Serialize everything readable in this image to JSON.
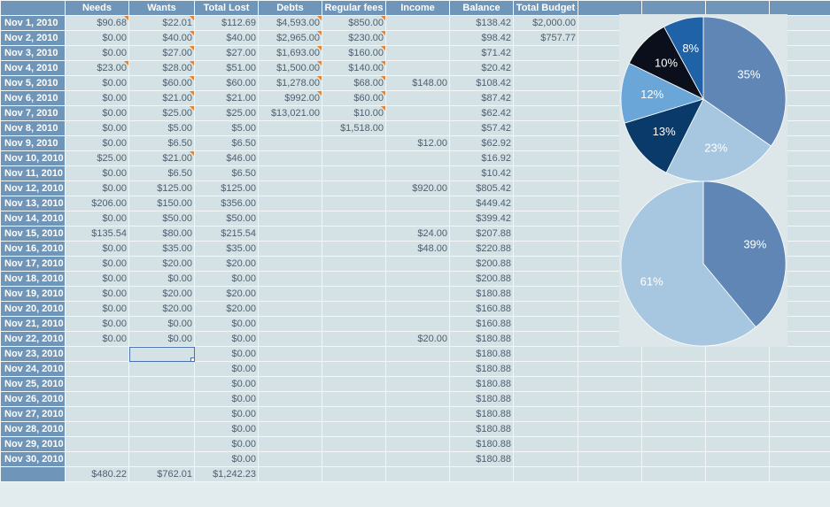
{
  "columns": [
    "",
    "Needs",
    "Wants",
    "Total Lost",
    "Debts",
    "Regular fees",
    "Income",
    "Balance",
    "Total Budget",
    "",
    "",
    "",
    ""
  ],
  "rows": [
    {
      "date": "Nov 1, 2010",
      "needs": "$90.68",
      "wants": "$22.01",
      "total": "$112.69",
      "debts": "$4,593.00",
      "fees": "$850.00",
      "income": "",
      "balance": "$138.42",
      "budget": "$2,000.00",
      "notes": [
        1,
        2,
        4,
        5
      ]
    },
    {
      "date": "Nov 2, 2010",
      "needs": "$0.00",
      "wants": "$40.00",
      "total": "$40.00",
      "debts": "$2,965.00",
      "fees": "$230.00",
      "income": "",
      "balance": "$98.42",
      "budget": "$757.77",
      "notes": [
        2,
        4,
        5
      ]
    },
    {
      "date": "Nov 3, 2010",
      "needs": "$0.00",
      "wants": "$27.00",
      "total": "$27.00",
      "debts": "$1,693.00",
      "fees": "$160.00",
      "income": "",
      "balance": "$71.42",
      "budget": "",
      "notes": [
        2,
        4,
        5
      ]
    },
    {
      "date": "Nov 4, 2010",
      "needs": "$23.00",
      "wants": "$28.00",
      "total": "$51.00",
      "debts": "$1,500.00",
      "fees": "$140.00",
      "income": "",
      "balance": "$20.42",
      "budget": "",
      "notes": [
        1,
        2,
        4,
        5
      ]
    },
    {
      "date": "Nov 5, 2010",
      "needs": "$0.00",
      "wants": "$60.00",
      "total": "$60.00",
      "debts": "$1,278.00",
      "fees": "$68.00",
      "income": "$148.00",
      "balance": "$108.42",
      "budget": "",
      "notes": [
        2,
        4,
        5
      ]
    },
    {
      "date": "Nov 6, 2010",
      "needs": "$0.00",
      "wants": "$21.00",
      "total": "$21.00",
      "debts": "$992.00",
      "fees": "$60.00",
      "income": "",
      "balance": "$87.42",
      "budget": "",
      "notes": [
        2,
        4,
        5
      ]
    },
    {
      "date": "Nov 7, 2010",
      "needs": "$0.00",
      "wants": "$25.00",
      "total": "$25.00",
      "debts": "$13,021.00",
      "fees": "$10.00",
      "income": "",
      "balance": "$62.42",
      "budget": "",
      "notes": [
        2,
        5
      ]
    },
    {
      "date": "Nov 8, 2010",
      "needs": "$0.00",
      "wants": "$5.00",
      "total": "$5.00",
      "debts": "",
      "fees": "$1,518.00",
      "income": "",
      "balance": "$57.42",
      "budget": "",
      "notes": []
    },
    {
      "date": "Nov 9, 2010",
      "needs": "$0.00",
      "wants": "$6.50",
      "total": "$6.50",
      "debts": "",
      "fees": "",
      "income": "$12.00",
      "balance": "$62.92",
      "budget": "",
      "notes": []
    },
    {
      "date": "Nov 10, 2010",
      "needs": "$25.00",
      "wants": "$21.00",
      "total": "$46.00",
      "debts": "",
      "fees": "",
      "income": "",
      "balance": "$16.92",
      "budget": "",
      "notes": [
        2
      ]
    },
    {
      "date": "Nov 11, 2010",
      "needs": "$0.00",
      "wants": "$6.50",
      "total": "$6.50",
      "debts": "",
      "fees": "",
      "income": "",
      "balance": "$10.42",
      "budget": "",
      "notes": []
    },
    {
      "date": "Nov 12, 2010",
      "needs": "$0.00",
      "wants": "$125.00",
      "total": "$125.00",
      "debts": "",
      "fees": "",
      "income": "$920.00",
      "balance": "$805.42",
      "budget": "",
      "notes": []
    },
    {
      "date": "Nov 13, 2010",
      "needs": "$206.00",
      "wants": "$150.00",
      "total": "$356.00",
      "debts": "",
      "fees": "",
      "income": "",
      "balance": "$449.42",
      "budget": "",
      "notes": []
    },
    {
      "date": "Nov 14, 2010",
      "needs": "$0.00",
      "wants": "$50.00",
      "total": "$50.00",
      "debts": "",
      "fees": "",
      "income": "",
      "balance": "$399.42",
      "budget": "",
      "notes": []
    },
    {
      "date": "Nov 15, 2010",
      "needs": "$135.54",
      "wants": "$80.00",
      "total": "$215.54",
      "debts": "",
      "fees": "",
      "income": "$24.00",
      "balance": "$207.88",
      "budget": "",
      "notes": []
    },
    {
      "date": "Nov 16, 2010",
      "needs": "$0.00",
      "wants": "$35.00",
      "total": "$35.00",
      "debts": "",
      "fees": "",
      "income": "$48.00",
      "balance": "$220.88",
      "budget": "",
      "notes": []
    },
    {
      "date": "Nov 17, 2010",
      "needs": "$0.00",
      "wants": "$20.00",
      "total": "$20.00",
      "debts": "",
      "fees": "",
      "income": "",
      "balance": "$200.88",
      "budget": "",
      "notes": []
    },
    {
      "date": "Nov 18, 2010",
      "needs": "$0.00",
      "wants": "$0.00",
      "total": "$0.00",
      "debts": "",
      "fees": "",
      "income": "",
      "balance": "$200.88",
      "budget": "",
      "notes": []
    },
    {
      "date": "Nov 19, 2010",
      "needs": "$0.00",
      "wants": "$20.00",
      "total": "$20.00",
      "debts": "",
      "fees": "",
      "income": "",
      "balance": "$180.88",
      "budget": "",
      "notes": []
    },
    {
      "date": "Nov 20, 2010",
      "needs": "$0.00",
      "wants": "$20.00",
      "total": "$20.00",
      "debts": "",
      "fees": "",
      "income": "",
      "balance": "$160.88",
      "budget": "",
      "notes": []
    },
    {
      "date": "Nov 21, 2010",
      "needs": "$0.00",
      "wants": "$0.00",
      "total": "$0.00",
      "debts": "",
      "fees": "",
      "income": "",
      "balance": "$160.88",
      "budget": "",
      "notes": []
    },
    {
      "date": "Nov 22, 2010",
      "needs": "$0.00",
      "wants": "$0.00",
      "total": "$0.00",
      "debts": "",
      "fees": "",
      "income": "$20.00",
      "balance": "$180.88",
      "budget": "",
      "notes": []
    },
    {
      "date": "Nov 23, 2010",
      "needs": "",
      "wants": "",
      "total": "$0.00",
      "debts": "",
      "fees": "",
      "income": "",
      "balance": "$180.88",
      "budget": "",
      "notes": [],
      "selected": 2
    },
    {
      "date": "Nov 24, 2010",
      "needs": "",
      "wants": "",
      "total": "$0.00",
      "debts": "",
      "fees": "",
      "income": "",
      "balance": "$180.88",
      "budget": "",
      "notes": []
    },
    {
      "date": "Nov 25, 2010",
      "needs": "",
      "wants": "",
      "total": "$0.00",
      "debts": "",
      "fees": "",
      "income": "",
      "balance": "$180.88",
      "budget": "",
      "notes": []
    },
    {
      "date": "Nov 26, 2010",
      "needs": "",
      "wants": "",
      "total": "$0.00",
      "debts": "",
      "fees": "",
      "income": "",
      "balance": "$180.88",
      "budget": "",
      "notes": []
    },
    {
      "date": "Nov 27, 2010",
      "needs": "",
      "wants": "",
      "total": "$0.00",
      "debts": "",
      "fees": "",
      "income": "",
      "balance": "$180.88",
      "budget": "",
      "notes": []
    },
    {
      "date": "Nov 28, 2010",
      "needs": "",
      "wants": "",
      "total": "$0.00",
      "debts": "",
      "fees": "",
      "income": "",
      "balance": "$180.88",
      "budget": "",
      "notes": []
    },
    {
      "date": "Nov 29, 2010",
      "needs": "",
      "wants": "",
      "total": "$0.00",
      "debts": "",
      "fees": "",
      "income": "",
      "balance": "$180.88",
      "budget": "",
      "notes": []
    },
    {
      "date": "Nov 30, 2010",
      "needs": "",
      "wants": "",
      "total": "$0.00",
      "debts": "",
      "fees": "",
      "income": "",
      "balance": "$180.88",
      "budget": "",
      "notes": []
    }
  ],
  "totals": {
    "needs": "$480.22",
    "wants": "$762.01",
    "total": "$1,242.23"
  },
  "chart_data": [
    {
      "type": "pie",
      "slices": [
        {
          "label": "35%",
          "value": 35,
          "color": "#5f86b5"
        },
        {
          "label": "23%",
          "value": 23,
          "color": "#a7c7e1"
        },
        {
          "label": "13%",
          "value": 13,
          "color": "#0a3a6a"
        },
        {
          "label": "12%",
          "value": 12,
          "color": "#6aa6d8"
        },
        {
          "label": "10%",
          "value": 10,
          "color": "#0b0f1c"
        },
        {
          "label": "8%",
          "value": 8,
          "color": "#1f62a8"
        }
      ]
    },
    {
      "type": "pie",
      "slices": [
        {
          "label": "39%",
          "value": 39,
          "color": "#5f86b5"
        },
        {
          "label": "61%",
          "value": 61,
          "color": "#a7c7e1"
        }
      ]
    }
  ]
}
